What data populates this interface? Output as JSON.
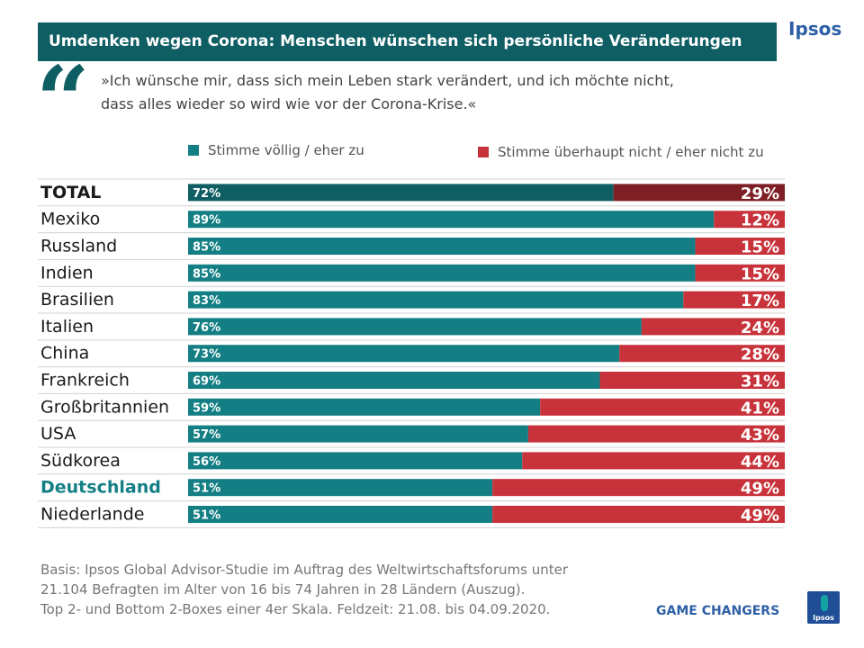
{
  "header": {
    "title": "Umdenken wegen Corona: Menschen wünschen sich persönliche Veränderungen",
    "brand": "Ipsos"
  },
  "quote": {
    "mark": "“",
    "line1": "»Ich wünsche mir, dass sich mein Leben stark verändert, und ich möchte nicht,",
    "line2": "dass alles wieder so wird wie vor der Corona-Krise.«"
  },
  "colors": {
    "agree": "#137f84",
    "disagree": "#c8323a",
    "total_agree": "#0f5e63",
    "total_disagree": "#7e1f26",
    "highlight_label": "#137f84"
  },
  "chart_data": {
    "type": "bar",
    "orientation": "horizontal",
    "stacked": true,
    "title": "Umdenken wegen Corona: Menschen wünschen sich persönliche Veränderungen",
    "xlim": [
      0,
      100
    ],
    "categories": [
      "TOTAL",
      "Mexiko",
      "Russland",
      "Indien",
      "Brasilien",
      "Italien",
      "China",
      "Frankreich",
      "Großbritannien",
      "USA",
      "Südkorea",
      "Deutschland",
      "Niederlande"
    ],
    "series": [
      {
        "name": "Stimme völlig / eher zu",
        "values": [
          72,
          89,
          85,
          85,
          83,
          76,
          73,
          69,
          59,
          57,
          56,
          51,
          51
        ]
      },
      {
        "name": "Stimme überhaupt nicht / eher nicht zu",
        "values": [
          29,
          12,
          15,
          15,
          17,
          24,
          28,
          31,
          41,
          43,
          44,
          49,
          49
        ]
      }
    ],
    "bold_categories": [
      "TOTAL"
    ],
    "highlight_categories": [
      "Deutschland"
    ],
    "legend_position": "top"
  },
  "footer": {
    "basis_line1": "Basis: Ipsos Global Advisor-Studie im Auftrag des Weltwirtschaftsforums unter",
    "basis_line2": "21.104 Befragten im Alter von 16 bis 74 Jahren in 28 Ländern (Auszug).",
    "basis_line3": "Top 2- und Bottom 2-Boxes einer 4er Skala. Feldzeit: 21.08. bis 04.09.2020.",
    "tagline": "GAME CHANGERS",
    "logo_text": "Ipsos"
  }
}
